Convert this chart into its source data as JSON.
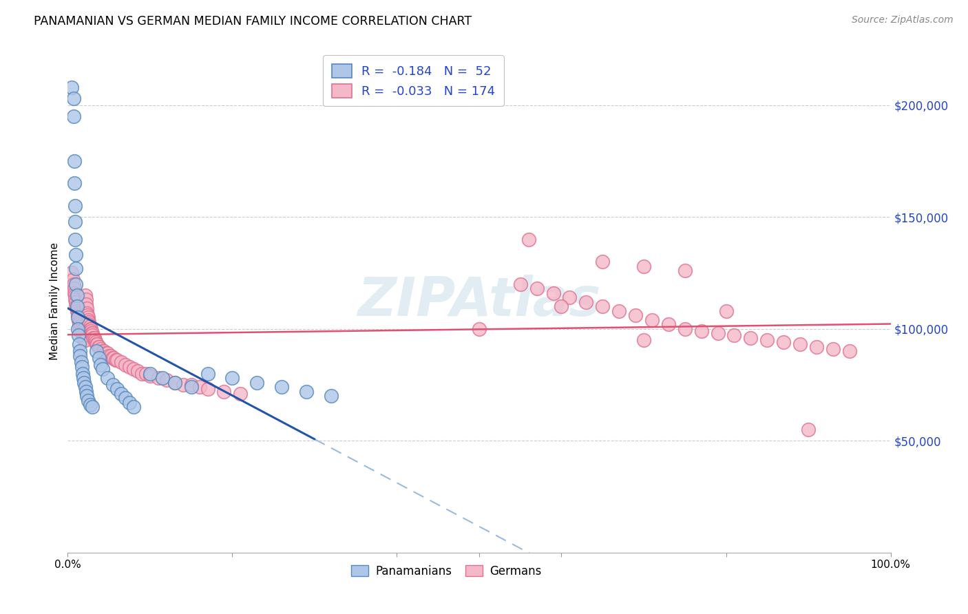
{
  "title": "PANAMANIAN VS GERMAN MEDIAN FAMILY INCOME CORRELATION CHART",
  "source": "Source: ZipAtlas.com",
  "ylabel": "Median Family Income",
  "yticks": [
    0,
    50000,
    100000,
    150000,
    200000
  ],
  "ytick_labels": [
    "",
    "$50,000",
    "$100,000",
    "$150,000",
    "$200,000"
  ],
  "xlim": [
    0.0,
    1.0
  ],
  "ylim": [
    0,
    225000
  ],
  "pan_R": -0.184,
  "pan_N": 52,
  "ger_R": -0.033,
  "ger_N": 174,
  "pan_color": "#aec6e8",
  "pan_edge_color": "#5588bb",
  "ger_color": "#f5b8c8",
  "ger_edge_color": "#e07090",
  "pan_line_color": "#2255aa",
  "ger_line_color": "#e05070",
  "pan_dash_color": "#99bbdd",
  "legend_color": "#2244cc",
  "watermark_color": "#d8e8f0",
  "pan_x": [
    0.005,
    0.007,
    0.007,
    0.008,
    0.008,
    0.009,
    0.009,
    0.009,
    0.01,
    0.01,
    0.01,
    0.011,
    0.011,
    0.012,
    0.012,
    0.013,
    0.014,
    0.015,
    0.015,
    0.016,
    0.017,
    0.018,
    0.019,
    0.02,
    0.021,
    0.022,
    0.023,
    0.025,
    0.027,
    0.03,
    0.035,
    0.038,
    0.04,
    0.042,
    0.048,
    0.055,
    0.06,
    0.065,
    0.07,
    0.075,
    0.08,
    0.1,
    0.115,
    0.13,
    0.15,
    0.17,
    0.2,
    0.23,
    0.26,
    0.29,
    0.32
  ],
  "pan_y": [
    208000,
    203000,
    195000,
    175000,
    165000,
    155000,
    148000,
    140000,
    133000,
    127000,
    120000,
    115000,
    110000,
    105000,
    100000,
    97000,
    93000,
    90000,
    88000,
    85000,
    83000,
    80000,
    78000,
    76000,
    74000,
    72000,
    70000,
    68000,
    66000,
    65000,
    90000,
    87000,
    84000,
    82000,
    78000,
    75000,
    73000,
    71000,
    69000,
    67000,
    65000,
    80000,
    78000,
    76000,
    74000,
    80000,
    78000,
    76000,
    74000,
    72000,
    70000
  ],
  "ger_x": [
    0.005,
    0.006,
    0.007,
    0.008,
    0.008,
    0.009,
    0.009,
    0.01,
    0.01,
    0.011,
    0.011,
    0.012,
    0.012,
    0.013,
    0.013,
    0.014,
    0.014,
    0.015,
    0.015,
    0.016,
    0.016,
    0.017,
    0.017,
    0.018,
    0.018,
    0.019,
    0.019,
    0.02,
    0.02,
    0.021,
    0.021,
    0.022,
    0.022,
    0.023,
    0.023,
    0.024,
    0.025,
    0.025,
    0.026,
    0.026,
    0.027,
    0.027,
    0.028,
    0.028,
    0.029,
    0.03,
    0.03,
    0.031,
    0.032,
    0.033,
    0.034,
    0.035,
    0.036,
    0.037,
    0.038,
    0.04,
    0.042,
    0.044,
    0.046,
    0.048,
    0.05,
    0.052,
    0.054,
    0.056,
    0.058,
    0.06,
    0.065,
    0.07,
    0.075,
    0.08,
    0.085,
    0.09,
    0.095,
    0.1,
    0.11,
    0.12,
    0.13,
    0.14,
    0.15,
    0.16,
    0.17,
    0.19,
    0.21,
    0.55,
    0.57,
    0.59,
    0.61,
    0.63,
    0.65,
    0.67,
    0.69,
    0.71,
    0.73,
    0.75,
    0.77,
    0.79,
    0.81,
    0.83,
    0.85,
    0.87,
    0.89,
    0.91,
    0.93,
    0.95,
    0.65,
    0.7,
    0.75,
    0.6,
    0.8,
    0.9,
    0.5,
    0.7,
    0.56
  ],
  "ger_y": [
    125000,
    122000,
    120000,
    118000,
    116000,
    115000,
    113000,
    112000,
    110000,
    109000,
    108000,
    107000,
    106000,
    105000,
    104000,
    103000,
    102000,
    101000,
    100000,
    100000,
    99000,
    99000,
    98000,
    98000,
    97000,
    97000,
    96000,
    96000,
    95000,
    95000,
    115000,
    113000,
    111000,
    109000,
    107000,
    106000,
    105000,
    104000,
    103000,
    102000,
    101000,
    100000,
    100000,
    99000,
    98000,
    98000,
    97000,
    96000,
    96000,
    95000,
    94000,
    93000,
    93000,
    92000,
    92000,
    91000,
    90000,
    90000,
    89000,
    89000,
    88000,
    88000,
    87000,
    87000,
    86000,
    86000,
    85000,
    84000,
    83000,
    82000,
    81000,
    80000,
    80000,
    79000,
    78000,
    77000,
    76000,
    75000,
    75000,
    74000,
    73000,
    72000,
    71000,
    120000,
    118000,
    116000,
    114000,
    112000,
    110000,
    108000,
    106000,
    104000,
    102000,
    100000,
    99000,
    98000,
    97000,
    96000,
    95000,
    94000,
    93000,
    92000,
    91000,
    90000,
    130000,
    128000,
    126000,
    110000,
    108000,
    55000,
    100000,
    95000,
    140000
  ]
}
